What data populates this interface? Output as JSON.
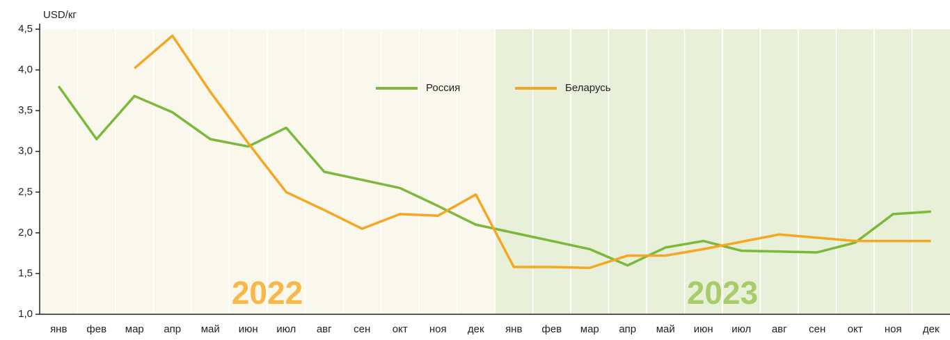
{
  "chart_data": {
    "type": "line",
    "y_label": "USD/кг",
    "categories": [
      "янв",
      "фев",
      "мар",
      "апр",
      "май",
      "июн",
      "июл",
      "авг",
      "сен",
      "окт",
      "ноя",
      "дек",
      "янв",
      "фев",
      "мар",
      "апр",
      "май",
      "июн",
      "июл",
      "авг",
      "сен",
      "окт",
      "ноя",
      "дек"
    ],
    "periods": [
      {
        "label": "2022",
        "color": "#faf8ec",
        "text_color": "#f7b84b"
      },
      {
        "label": "2023",
        "color": "#e8f0da",
        "text_color": "#a9cc6b"
      }
    ],
    "series": [
      {
        "name": "Россия",
        "color": "#7cb83a",
        "values": [
          3.8,
          3.15,
          3.68,
          3.48,
          3.15,
          3.06,
          3.29,
          2.75,
          2.65,
          2.55,
          2.33,
          2.1,
          2.0,
          1.9,
          1.8,
          1.6,
          1.82,
          1.9,
          1.78,
          1.77,
          1.76,
          1.88,
          2.23,
          2.26
        ]
      },
      {
        "name": "Беларусь",
        "color": "#f5a623",
        "values": [
          null,
          null,
          4.02,
          4.42,
          3.73,
          3.1,
          2.5,
          2.28,
          2.05,
          2.23,
          2.21,
          2.47,
          1.58,
          1.58,
          1.57,
          1.72,
          1.72,
          1.8,
          1.89,
          1.98,
          1.94,
          1.9,
          1.9,
          1.9
        ]
      }
    ],
    "ylim": [
      1.0,
      4.5
    ],
    "yticks": [
      {
        "value": 1.0,
        "label": "1,0"
      },
      {
        "value": 1.5,
        "label": "1,5"
      },
      {
        "value": 2.0,
        "label": "2,0"
      },
      {
        "value": 2.5,
        "label": "2,5"
      },
      {
        "value": 3.0,
        "label": "3,0"
      },
      {
        "value": 3.5,
        "label": "3,5"
      },
      {
        "value": 4.0,
        "label": "4,0"
      },
      {
        "value": 4.5,
        "label": "4,5"
      }
    ]
  }
}
